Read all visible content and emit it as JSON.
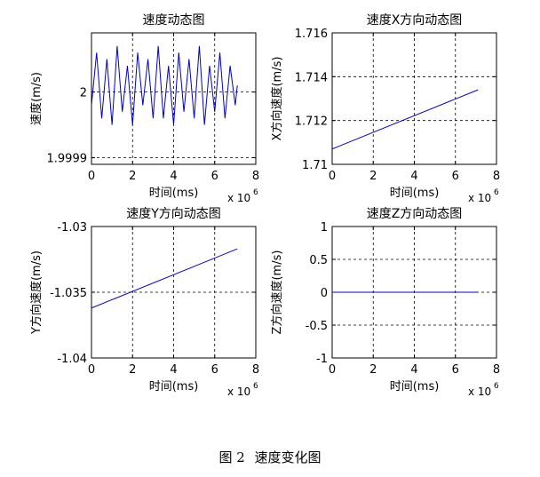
{
  "caption": {
    "label": "图 2",
    "title": "速度变化图"
  },
  "chart_data": [
    {
      "type": "line",
      "title": "速度动态图",
      "xlabel": "时间(ms)",
      "ylabel": "速度(m/s)",
      "x_exponent_label": "x 10",
      "x_exponent": "6",
      "xlim": [
        0,
        8
      ],
      "ylim": [
        1.99989,
        2.00009
      ],
      "xticks": [
        0,
        2,
        4,
        6,
        8
      ],
      "yticks": [
        1.9999,
        2
      ],
      "ytick_labels": [
        "1.9999",
        "2"
      ],
      "grid": true,
      "color": "#0000cc",
      "series": [
        {
          "x": [
            0,
            0.25,
            0.5,
            0.75,
            1,
            1.25,
            1.5,
            1.75,
            2,
            2.25,
            2.5,
            2.75,
            3,
            3.25,
            3.5,
            3.75,
            4,
            4.25,
            4.5,
            4.75,
            5,
            5.25,
            5.5,
            5.75,
            6,
            6.25,
            6.5,
            6.75,
            7,
            7.1
          ],
          "y": [
            1.99998,
            2.00006,
            1.99996,
            2.00005,
            1.99995,
            2.00007,
            1.99997,
            2.00004,
            1.99995,
            2.00006,
            1.99998,
            2.00005,
            1.99996,
            2.00007,
            1.99996,
            2.00004,
            1.99995,
            2.00006,
            1.99997,
            2.00005,
            1.99996,
            2.00007,
            1.99995,
            2.00004,
            1.99997,
            2.00006,
            1.99996,
            2.00004,
            1.99998,
            2.00001
          ]
        }
      ]
    },
    {
      "type": "line",
      "title": "速度X方向动态图",
      "xlabel": "时间(ms)",
      "ylabel": "X方向速度(m/s)",
      "x_exponent_label": "x 10",
      "x_exponent": "6",
      "xlim": [
        0,
        8
      ],
      "ylim": [
        1.71,
        1.716
      ],
      "xticks": [
        0,
        2,
        4,
        6,
        8
      ],
      "yticks": [
        1.71,
        1.712,
        1.714,
        1.716
      ],
      "ytick_labels": [
        "1.71",
        "1.712",
        "1.714",
        "1.716"
      ],
      "grid": true,
      "color": "#0000cc",
      "series": [
        {
          "x": [
            0,
            7.1
          ],
          "y": [
            1.7107,
            1.7134
          ]
        }
      ]
    },
    {
      "type": "line",
      "title": "速度Y方向动态图",
      "xlabel": "时间(ms)",
      "ylabel": "Y方向速度(m/s)",
      "x_exponent_label": "x 10",
      "x_exponent": "6",
      "xlim": [
        0,
        8
      ],
      "ylim": [
        -1.04,
        -1.03
      ],
      "xticks": [
        0,
        2,
        4,
        6,
        8
      ],
      "yticks": [
        -1.04,
        -1.035,
        -1.03
      ],
      "ytick_labels": [
        "-1.04",
        "-1.035",
        "-1.03"
      ],
      "grid": true,
      "color": "#0000cc",
      "series": [
        {
          "x": [
            0,
            7.1
          ],
          "y": [
            -1.0362,
            -1.0317
          ]
        }
      ]
    },
    {
      "type": "line",
      "title": "速度Z方向动态图",
      "xlabel": "时间(ms)",
      "ylabel": "Z方向速度(m/s)",
      "x_exponent_label": "x 10",
      "x_exponent": "6",
      "xlim": [
        0,
        8
      ],
      "ylim": [
        -1,
        1
      ],
      "xticks": [
        0,
        2,
        4,
        6,
        8
      ],
      "yticks": [
        -1,
        -0.5,
        0,
        0.5,
        1
      ],
      "ytick_labels": [
        "-1",
        "-0.5",
        "0",
        "0.5",
        "1"
      ],
      "grid": true,
      "color": "#0000cc",
      "series": [
        {
          "x": [
            0,
            7.1
          ],
          "y": [
            0,
            0
          ]
        }
      ]
    }
  ]
}
